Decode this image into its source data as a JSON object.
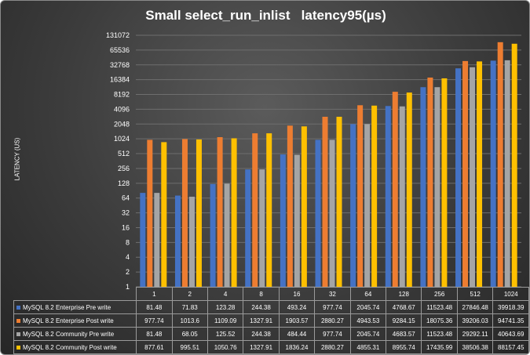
{
  "chart_data": {
    "type": "bar",
    "title": "Small select_run_inlist   latency95(µs)",
    "ylabel": "LATENCY (US)",
    "yscale": "log2",
    "ylim": [
      1,
      131072
    ],
    "yticks": [
      "1",
      "2",
      "4",
      "8",
      "16",
      "32",
      "64",
      "128",
      "256",
      "512",
      "1024",
      "2048",
      "4096",
      "8192",
      "16384",
      "32768",
      "65536",
      "131072"
    ],
    "categories": [
      "1",
      "2",
      "4",
      "8",
      "16",
      "32",
      "64",
      "128",
      "256",
      "512",
      "1024"
    ],
    "series": [
      {
        "name": "MySQL 8.2 Enterprise Pre write",
        "color": "#4472c4",
        "values": [
          81.48,
          71.83,
          123.28,
          244.38,
          493.24,
          977.74,
          2045.74,
          4768.67,
          11523.48,
          27846.48,
          39918.39
        ],
        "labels": [
          "81.48",
          "71.83",
          "123.28",
          "244.38",
          "493.24",
          "977.74",
          "2045.74",
          "4768.67",
          "11523.48",
          "27846.48",
          "39918.39"
        ]
      },
      {
        "name": "MySQL 8.2 Enterprise Post write",
        "color": "#ed7d31",
        "values": [
          977.74,
          1013.6,
          1109.09,
          1327.91,
          1903.57,
          2880.27,
          4943.53,
          9284.15,
          18075.36,
          39206.03,
          94741.35
        ],
        "labels": [
          "977.74",
          "1013.6",
          "1109.09",
          "1327.91",
          "1903.57",
          "2880.27",
          "4943.53",
          "9284.15",
          "18075.36",
          "39206.03",
          "94741.35"
        ]
      },
      {
        "name": "MySQL 8.2 Community Pre write",
        "color": "#a5a5a5",
        "values": [
          81.48,
          68.05,
          125.52,
          244.38,
          484.44,
          977.74,
          2045.74,
          4683.57,
          11523.48,
          29292.11,
          40643.69
        ],
        "labels": [
          "81.48",
          "68.05",
          "125.52",
          "244.38",
          "484.44",
          "977.74",
          "2045.74",
          "4683.57",
          "11523.48",
          "29292.11",
          "40643.69"
        ]
      },
      {
        "name": "MySQL 8.2 Community Post write",
        "color": "#ffc000",
        "values": [
          877.61,
          995.51,
          1050.76,
          1327.91,
          1836.24,
          2880.27,
          4855.31,
          8955.74,
          17435.99,
          38506.38,
          88157.45
        ],
        "labels": [
          "877.61",
          "995.51",
          "1050.76",
          "1327.91",
          "1836.24",
          "2880.27",
          "4855.31",
          "8955.74",
          "17435.99",
          "38506.38",
          "88157.45"
        ]
      }
    ],
    "grid": "horizontal",
    "legend": "data-table"
  }
}
